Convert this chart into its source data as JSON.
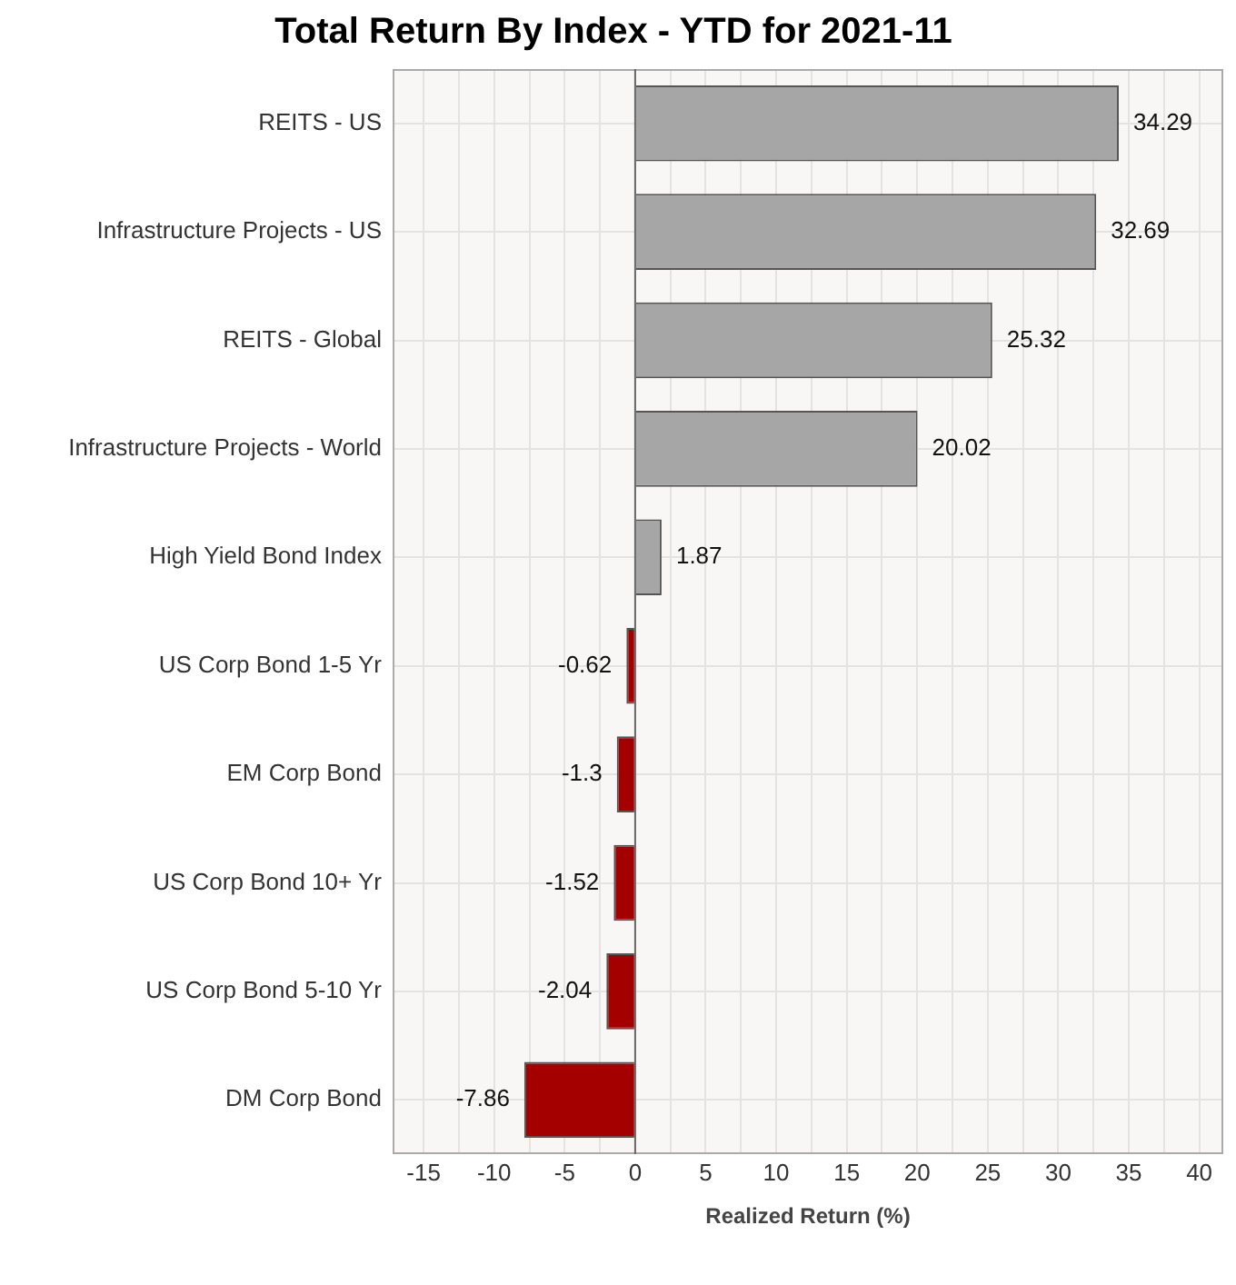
{
  "chart_data": {
    "type": "bar",
    "orientation": "horizontal",
    "title": "Total Return By Index - YTD for 2021-11",
    "xlabel": "Realized Return (%)",
    "categories": [
      "REITS - US",
      "Infrastructure Projects - US",
      "REITS - Global",
      "Infrastructure Projects - World",
      "High Yield Bond Index",
      "US Corp Bond 1-5 Yr",
      "EM Corp Bond",
      "US Corp Bond 10+ Yr",
      "US Corp Bond 5-10 Yr",
      "DM Corp Bond"
    ],
    "values": [
      34.29,
      32.69,
      25.32,
      20.02,
      1.87,
      -0.62,
      -1.3,
      -1.52,
      -2.04,
      -7.86
    ],
    "colors": [
      "#a6a6a6",
      "#a6a6a6",
      "#a6a6a6",
      "#a6a6a6",
      "#a6a6a6",
      "#a50000",
      "#a50000",
      "#a50000",
      "#a50000",
      "#a50000"
    ],
    "xlim": [
      -17.2,
      41.7
    ],
    "xticks": [
      -15,
      {
        "value": -12.5,
        "label": null
      },
      -10,
      {
        "value": -7.5,
        "label": null
      },
      -5,
      {
        "value": -2.5,
        "label": null
      },
      0,
      {
        "value": 2.5,
        "label": null
      },
      5,
      {
        "value": 7.5,
        "label": null
      },
      10,
      {
        "value": 12.5,
        "label": null
      },
      15,
      {
        "value": 17.5,
        "label": null
      },
      20,
      {
        "value": 22.5,
        "label": null
      },
      25,
      {
        "value": 27.5,
        "label": null
      },
      30,
      {
        "value": 32.5,
        "label": null
      },
      35,
      {
        "value": 37.5,
        "label": null
      },
      40
    ],
    "grid": true,
    "data_labels": true,
    "legend": false
  }
}
